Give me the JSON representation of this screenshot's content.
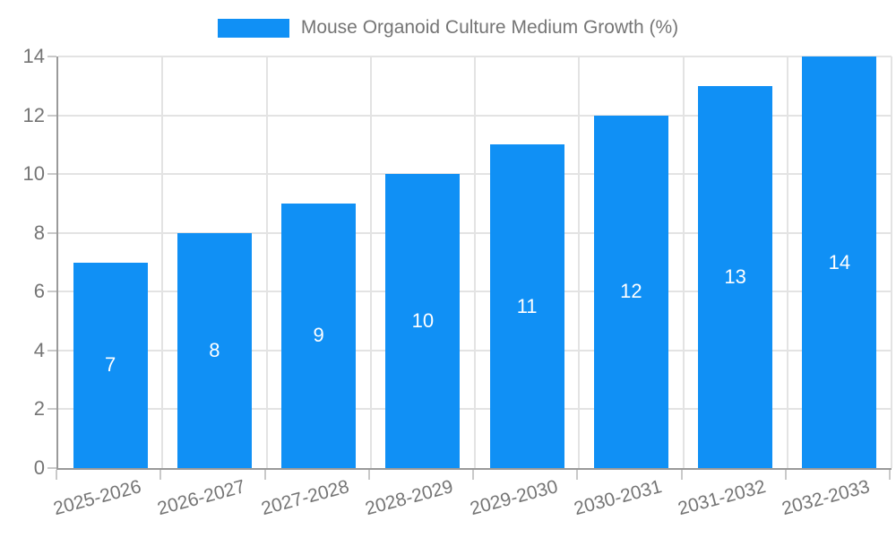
{
  "legend": {
    "label": "Mouse Organoid Culture Medium Growth (%)",
    "swatch_color": "#1090F5"
  },
  "colors": {
    "bar": "#1090F5",
    "axis_line": "#9a9a9a",
    "gridline": "#e3e3e3",
    "tick": "#c9c9c9",
    "axis_label": "#757575",
    "value_label": "#ffffff",
    "background": "#ffffff"
  },
  "chart_data": {
    "type": "bar",
    "title": "Mouse Organoid Culture Medium Growth (%)",
    "categories": [
      "2025-2026",
      "2026-2027",
      "2027-2028",
      "2028-2029",
      "2029-2030",
      "2030-2031",
      "2031-2032",
      "2032-2033"
    ],
    "values": [
      7,
      8,
      9,
      10,
      11,
      12,
      13,
      14
    ],
    "xlabel": "",
    "ylabel": "",
    "ylim": [
      0,
      14
    ],
    "ytick_step": 2,
    "y_tick_labels": [
      "0",
      "2",
      "4",
      "6",
      "8",
      "10",
      "12",
      "14"
    ],
    "grid": true,
    "legend_position": "top-center",
    "value_label_position": "inside-center",
    "x_label_rotation_deg": -15
  }
}
